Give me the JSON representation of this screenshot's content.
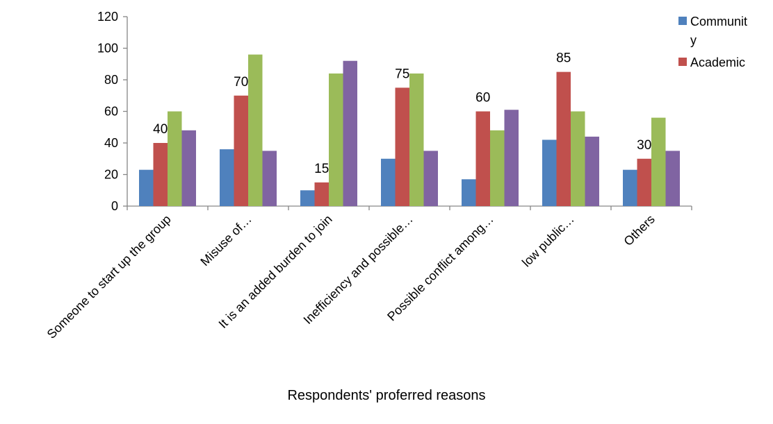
{
  "chart_data": {
    "type": "bar",
    "title": "",
    "xlabel": "Respondents' proferred reasons",
    "ylabel": "",
    "ylim": [
      0,
      120
    ],
    "yticks": [
      0,
      20,
      40,
      60,
      80,
      100,
      120
    ],
    "categories": [
      "Someone to start up the group",
      "Misuse of…",
      "It is an added burden to join",
      "Inefficiency and possible…",
      "Possible conflict among…",
      "low public…",
      "Others"
    ],
    "series": [
      {
        "name": "Communit\ny",
        "color": "#4F81BD",
        "values": [
          23,
          36,
          10,
          30,
          17,
          42,
          23
        ]
      },
      {
        "name": "Academic",
        "color": "#C0504D",
        "values": [
          40,
          70,
          15,
          75,
          60,
          85,
          30
        ],
        "show_data_labels": true
      },
      {
        "color": "#9BBB59",
        "values": [
          60,
          96,
          84,
          84,
          48,
          60,
          56
        ]
      },
      {
        "color": "#8064A2",
        "values": [
          48,
          35,
          92,
          35,
          61,
          44,
          35
        ]
      }
    ],
    "grid": false,
    "legend_position": "top-right"
  }
}
